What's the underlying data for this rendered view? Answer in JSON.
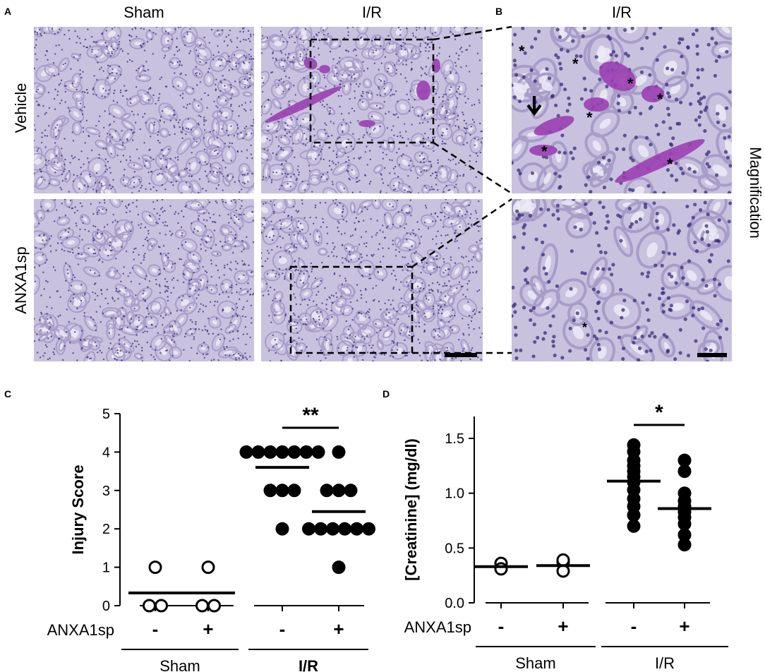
{
  "panel_a": {
    "letter": "A",
    "col_headers": [
      "Sham",
      "I/R"
    ],
    "row_headers": [
      "Vehicle",
      "ANXA1sp"
    ]
  },
  "panel_b": {
    "letter": "B",
    "col_header": "I/R",
    "side_label": "Magnification",
    "asterisk": "*"
  },
  "colors": {
    "tissue_bg": "#c8c2df",
    "tubule_wall": "#a89cc9",
    "nuclei": "#3a2d7a",
    "cast": "#9b3fb3",
    "lumen": "#ecebf4"
  },
  "chart_data": [
    {
      "panel": "C",
      "type": "scatter",
      "ylabel": "Injury Score",
      "ylim": [
        0,
        5
      ],
      "yticks": [
        "0",
        "1",
        "2",
        "3",
        "4",
        "5"
      ],
      "treatment_label": "ANXA1sp",
      "treatment_signs": [
        "-",
        "+",
        "-",
        "+"
      ],
      "groups": [
        "Sham",
        "I/R"
      ],
      "significance": "**",
      "series": [
        {
          "group": "Sham",
          "treatment": "-",
          "filled": false,
          "values": [
            0,
            0,
            1
          ],
          "mean": 0.33
        },
        {
          "group": "Sham",
          "treatment": "+",
          "filled": false,
          "values": [
            0,
            0,
            1
          ],
          "mean": 0.33
        },
        {
          "group": "I/R",
          "treatment": "-",
          "filled": true,
          "values": [
            4,
            4,
            4,
            4,
            4,
            4,
            4,
            3,
            3,
            3,
            2
          ],
          "mean": 3.6
        },
        {
          "group": "I/R",
          "treatment": "+",
          "filled": true,
          "values": [
            4,
            3,
            3,
            3,
            2,
            2,
            2,
            2,
            2,
            2,
            1
          ],
          "mean": 2.45
        }
      ]
    },
    {
      "panel": "D",
      "type": "scatter",
      "ylabel": "[Creatinine] (mg/dl)",
      "ylim": [
        0,
        1.7
      ],
      "yticks": [
        "0.0",
        "0.5",
        "1.0",
        "1.5"
      ],
      "treatment_label": "ANXA1sp",
      "treatment_signs": [
        "-",
        "+",
        "-",
        "+"
      ],
      "groups": [
        "Sham",
        "I/R"
      ],
      "significance": "*",
      "series": [
        {
          "group": "Sham",
          "treatment": "-",
          "filled": false,
          "values": [
            0.32,
            0.36,
            0.31
          ],
          "mean": 0.33
        },
        {
          "group": "Sham",
          "treatment": "+",
          "filled": false,
          "values": [
            0.37,
            0.39,
            0.29
          ],
          "mean": 0.34
        },
        {
          "group": "I/R",
          "treatment": "-",
          "filled": true,
          "values": [
            1.44,
            1.38,
            1.3,
            1.25,
            1.2,
            1.15,
            1.1,
            1.03,
            0.95,
            0.88,
            0.8,
            0.7
          ],
          "mean": 1.11
        },
        {
          "group": "I/R",
          "treatment": "+",
          "filled": true,
          "values": [
            1.3,
            1.2,
            1.0,
            0.93,
            0.88,
            0.86,
            0.83,
            0.78,
            0.72,
            0.62,
            0.53
          ],
          "mean": 0.86
        }
      ]
    }
  ]
}
